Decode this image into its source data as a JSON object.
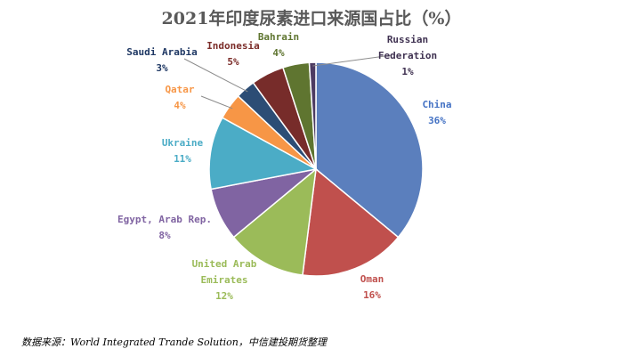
{
  "chart_data": {
    "type": "pie",
    "title": "2021年印度尿素进口来源国占比（%）",
    "unit": "%",
    "slices": [
      {
        "name": "China",
        "name_lines": [
          "China"
        ],
        "value": 36,
        "label": "36%",
        "color": "#5b7fbd",
        "label_color": "#4472c4"
      },
      {
        "name": "Oman",
        "name_lines": [
          "Oman"
        ],
        "value": 16,
        "label": "16%",
        "color": "#c0504d",
        "label_color": "#c0504d"
      },
      {
        "name": "United Arab Emirates",
        "name_lines": [
          "United Arab",
          "Emirates"
        ],
        "value": 12,
        "label": "12%",
        "color": "#9bbb59",
        "label_color": "#9bbb59"
      },
      {
        "name": "Egypt, Arab Rep.",
        "name_lines": [
          "Egypt, Arab Rep."
        ],
        "value": 8,
        "label": "8%",
        "color": "#8064a2",
        "label_color": "#8064a2"
      },
      {
        "name": "Ukraine",
        "name_lines": [
          "Ukraine"
        ],
        "value": 11,
        "label": "11%",
        "color": "#4bacc6",
        "label_color": "#4bacc6"
      },
      {
        "name": "Qatar",
        "name_lines": [
          "Qatar"
        ],
        "value": 4,
        "label": "4%",
        "color": "#f79646",
        "label_color": "#f79646"
      },
      {
        "name": "Saudi Arabia",
        "name_lines": [
          "Saudi Arabia"
        ],
        "value": 3,
        "label": "3%",
        "color": "#2c4d75",
        "label_color": "#1f3864"
      },
      {
        "name": "Indonesia",
        "name_lines": [
          "Indonesia"
        ],
        "value": 5,
        "label": "5%",
        "color": "#772c2a",
        "label_color": "#7b2c29"
      },
      {
        "name": "Bahrain",
        "name_lines": [
          "Bahrain"
        ],
        "value": 4,
        "label": "4%",
        "color": "#5f7530",
        "label_color": "#5f7530"
      },
      {
        "name": "Russian Federation",
        "name_lines": [
          "Russian",
          "Federation"
        ],
        "value": 1,
        "label": "1%",
        "color": "#4d3b62",
        "label_color": "#3f3151"
      }
    ]
  },
  "footer": {
    "source": "数据来源：World Integrated Trande Solution，中信建投期货整理"
  }
}
